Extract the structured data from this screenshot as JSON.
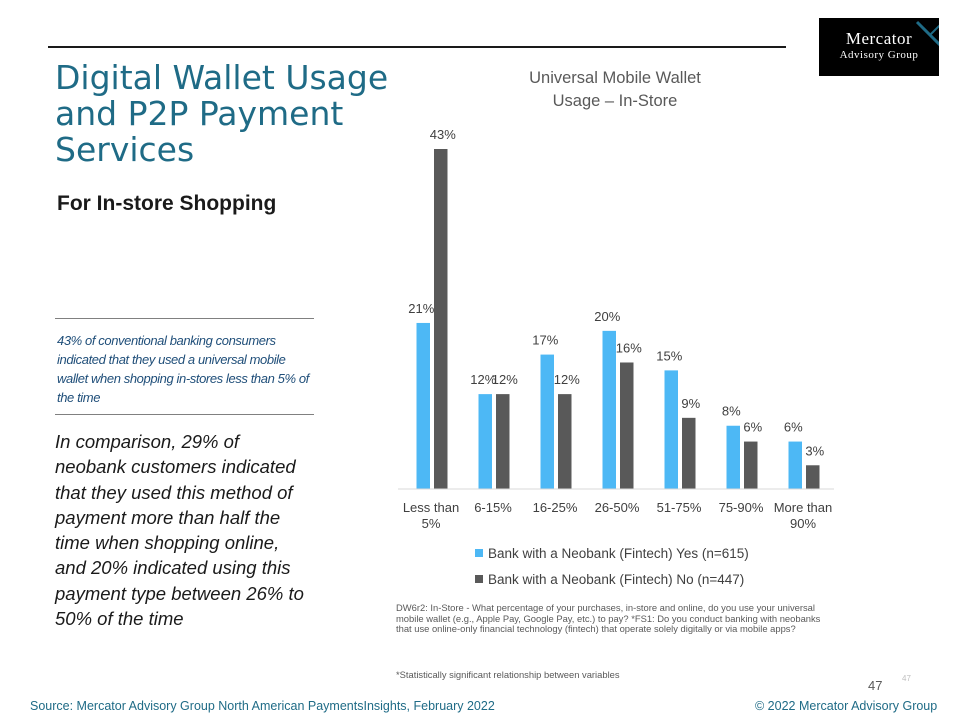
{
  "logo": {
    "line1": "Mercator",
    "line2": "Advisory Group"
  },
  "page_title": "Digital Wallet Usage and P2P Payment Services",
  "subtitle": "For In-store Shopping",
  "callout": "43% of conventional banking consumers indicated that they used a universal mobile wallet when shopping in-stores less than 5% of the time",
  "comparison": "In comparison, 29% of neobank customers indicated that they used this method of payment more than half the time when shopping online, and 20% indicated using this payment type between 26% to 50% of the time",
  "footnote": "DW6r2: In-Store - What percentage of your purchases, in-store and online, do you use your universal mobile wallet (e.g., Apple Pay, Google Pay, etc.) to pay? *FS1: Do you conduct banking with neobanks that use online-only financial technology (fintech) that operate solely digitally or via mobile apps?",
  "footnote2": "*Statistically significant relationship between variables",
  "page_number_small": "47",
  "page_number": "47",
  "source": "Source: Mercator Advisory Group North American PaymentsInsights, February 2022",
  "copyright": "© 2022 Mercator Advisory Group",
  "colors": {
    "title": "#1f6b86",
    "series_yes": "#4db8f5",
    "series_no": "#595959"
  },
  "chart_data": {
    "type": "bar",
    "title": "Universal Mobile Wallet Usage – In-Store",
    "categories": [
      "Less than 5%",
      "6-15%",
      "16-25%",
      "26-50%",
      "51-75%",
      "75-90%",
      "More than 90%"
    ],
    "series": [
      {
        "name": "Bank with a Neobank (Fintech) Yes (n=615)",
        "values": [
          21,
          12,
          17,
          20,
          15,
          8,
          6
        ],
        "labels": [
          "21%",
          "12%",
          "17%",
          "20%",
          "15%",
          "8%",
          "6%"
        ]
      },
      {
        "name": "Bank with a Neobank (Fintech) No (n=447)",
        "values": [
          43,
          12,
          12,
          16,
          9,
          6,
          3
        ],
        "labels": [
          "43%",
          "12%",
          "12%",
          "16%",
          "9%",
          "6%",
          "3%"
        ]
      }
    ],
    "ylim": [
      0,
      43
    ],
    "grid": false,
    "legend_position": "bottom"
  }
}
